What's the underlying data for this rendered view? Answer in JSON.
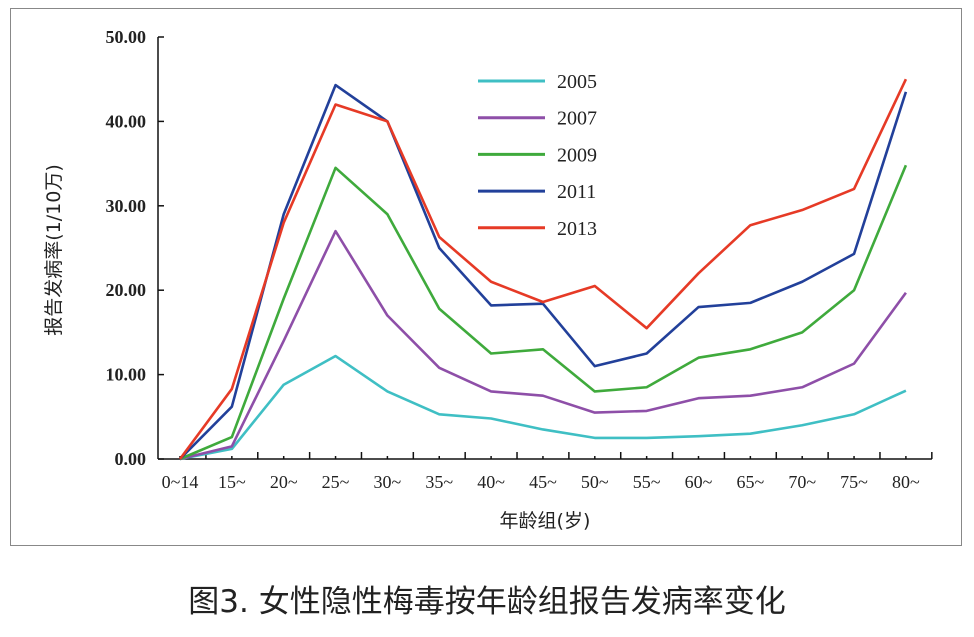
{
  "chart_data": {
    "type": "line",
    "title": "",
    "xlabel": "年龄组(岁)",
    "ylabel": "报告发病率(1/10万)",
    "ylim": [
      0,
      50
    ],
    "yticks": [
      "0.00",
      "10.00",
      "20.00",
      "30.00",
      "40.00",
      "50.00"
    ],
    "categories": [
      "0~14",
      "15~",
      "20~",
      "25~",
      "30~",
      "35~",
      "40~",
      "45~",
      "50~",
      "55~",
      "60~",
      "65~",
      "70~",
      "75~",
      "80~"
    ],
    "grid": false,
    "legend_position": "top-center",
    "series": [
      {
        "name": "2005",
        "color": "#3fbfc4",
        "values": [
          0,
          1.2,
          8.8,
          12.2,
          8.0,
          5.3,
          4.8,
          3.5,
          2.5,
          2.5,
          2.7,
          3.0,
          4.0,
          5.3,
          8.1
        ]
      },
      {
        "name": "2007",
        "color": "#8e4fa8",
        "values": [
          0,
          1.5,
          14.0,
          27.0,
          17.0,
          10.8,
          8.0,
          7.5,
          5.5,
          5.7,
          7.2,
          7.5,
          8.5,
          11.3,
          19.7
        ]
      },
      {
        "name": "2009",
        "color": "#3faa3c",
        "values": [
          0,
          2.6,
          19.0,
          34.5,
          29.0,
          17.8,
          12.5,
          13.0,
          8.0,
          8.5,
          12.0,
          13.0,
          15.0,
          20.0,
          34.8
        ]
      },
      {
        "name": "2011",
        "color": "#22409a",
        "values": [
          0,
          6.2,
          29.0,
          44.3,
          40.0,
          25.0,
          18.2,
          18.4,
          11.0,
          12.5,
          18.0,
          18.5,
          21.0,
          24.3,
          43.5
        ]
      },
      {
        "name": "2013",
        "color": "#e63a26",
        "values": [
          0,
          8.3,
          28.0,
          42.0,
          40.0,
          26.3,
          21.0,
          18.6,
          20.5,
          15.5,
          22.0,
          27.7,
          29.5,
          32.0,
          45.0
        ]
      }
    ]
  },
  "caption": "图3. 女性隐性梅毒按年龄组报告发病率变化"
}
